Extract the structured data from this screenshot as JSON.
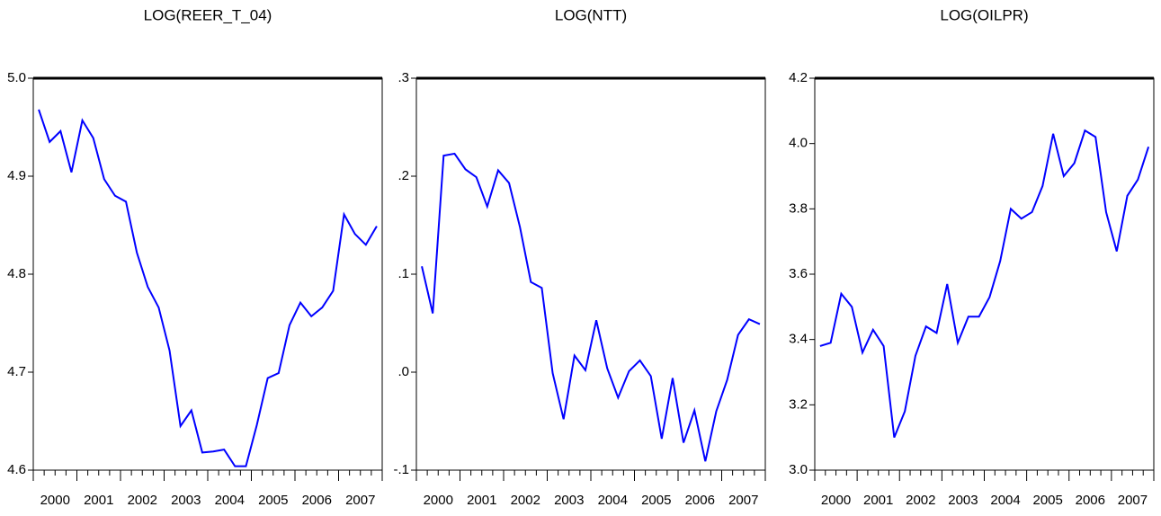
{
  "chart_data": [
    {
      "type": "line",
      "title": "LOG(REER_T_04)",
      "categories": [
        "2000",
        null,
        null,
        null,
        "2001",
        null,
        null,
        null,
        "2002",
        null,
        null,
        null,
        "2003",
        null,
        null,
        null,
        "2004",
        null,
        null,
        null,
        "2005",
        null,
        null,
        null,
        "2006",
        null,
        null,
        null,
        "2007",
        null,
        null,
        null
      ],
      "series": [
        {
          "color": "#0000ff",
          "values": [
            4.968,
            4.935,
            4.946,
            4.904,
            4.957,
            4.939,
            4.897,
            4.88,
            4.874,
            4.822,
            4.787,
            4.766,
            4.722,
            4.645,
            4.661,
            4.618,
            4.619,
            4.621,
            4.604,
            4.604,
            4.646,
            4.694,
            4.699,
            4.748,
            4.771,
            4.757,
            4.766,
            4.783,
            4.861,
            4.841,
            4.83,
            4.849
          ]
        }
      ],
      "ylim": [
        4.6,
        5.0
      ],
      "yticks": [
        4.6,
        4.7,
        4.8,
        4.9,
        {
          "value": 5,
          "label": "5.0"
        }
      ]
    },
    {
      "type": "line",
      "title": "LOG(NTT)",
      "categories": [
        "2000",
        null,
        null,
        null,
        "2001",
        null,
        null,
        null,
        "2002",
        null,
        null,
        null,
        "2003",
        null,
        null,
        null,
        "2004",
        null,
        null,
        null,
        "2005",
        null,
        null,
        null,
        "2006",
        null,
        null,
        null,
        "2007",
        null,
        null,
        null
      ],
      "series": [
        {
          "color": "#0000ff",
          "values": [
            0.108,
            0.06,
            0.221,
            0.223,
            0.207,
            0.199,
            0.169,
            0.206,
            0.193,
            0.148,
            0.092,
            0.086,
            -0.001,
            -0.048,
            0.017,
            0.002,
            0.053,
            0.004,
            -0.026,
            0.001,
            0.012,
            -0.004,
            -0.068,
            -0.006,
            -0.072,
            -0.039,
            -0.091,
            -0.04,
            -0.008,
            0.038,
            0.054,
            0.049
          ]
        }
      ],
      "ylim": [
        -0.1,
        0.3
      ],
      "yticks": [
        {
          "value": -0.1,
          "label": "-.1"
        },
        {
          "value": 0,
          "label": ".0"
        },
        {
          "value": 0.1,
          "label": ".1"
        },
        {
          "value": 0.2,
          "label": ".2"
        },
        {
          "value": 0.3,
          "label": ".3"
        }
      ]
    },
    {
      "type": "line",
      "title": "LOG(OILPR)",
      "categories": [
        "2000",
        null,
        null,
        null,
        "2001",
        null,
        null,
        null,
        "2002",
        null,
        null,
        null,
        "2003",
        null,
        null,
        null,
        "2004",
        null,
        null,
        null,
        "2005",
        null,
        null,
        null,
        "2006",
        null,
        null,
        null,
        "2007",
        null,
        null,
        null
      ],
      "series": [
        {
          "color": "#0000ff",
          "values": [
            3.38,
            3.39,
            3.54,
            3.5,
            3.36,
            3.43,
            3.38,
            3.1,
            3.18,
            3.35,
            3.44,
            3.42,
            3.57,
            3.39,
            3.47,
            3.47,
            3.53,
            3.64,
            3.8,
            3.77,
            3.79,
            3.87,
            4.03,
            3.9,
            3.94,
            4.04,
            4.02,
            3.79,
            3.67,
            3.84,
            3.89,
            3.99
          ]
        }
      ],
      "ylim": [
        3.0,
        4.2
      ],
      "yticks": [
        {
          "value": 3,
          "label": "3.0"
        },
        3.2,
        3.4,
        3.6,
        3.8,
        {
          "value": 4,
          "label": "4.0"
        },
        4.2
      ]
    }
  ]
}
